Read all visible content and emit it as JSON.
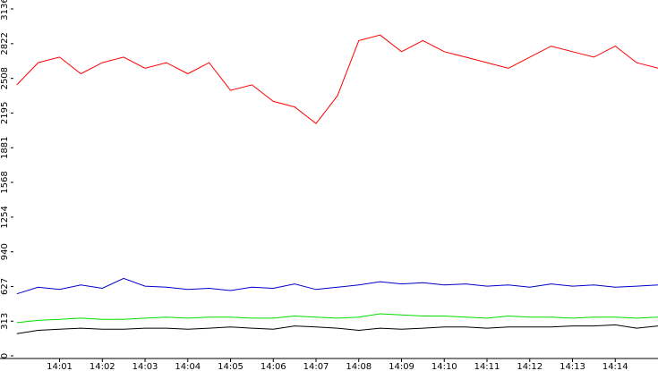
{
  "chart_data": {
    "type": "line",
    "x": [
      840.0,
      840.5,
      841.0,
      841.5,
      842.0,
      842.5,
      843.0,
      843.5,
      844.0,
      844.5,
      845.0,
      845.5,
      846.0,
      846.5,
      847.0,
      847.5,
      848.0,
      848.5,
      849.0,
      849.5,
      850.0,
      850.5,
      851.0,
      851.5,
      852.0,
      852.5,
      853.0,
      853.5,
      854.0,
      854.5,
      855.0
    ],
    "xlim": [
      839.9,
      855.0
    ],
    "xticks": [
      {
        "value": 841,
        "label": "14:01"
      },
      {
        "value": 842,
        "label": "14:02"
      },
      {
        "value": 843,
        "label": "14:03"
      },
      {
        "value": 844,
        "label": "14:04"
      },
      {
        "value": 845,
        "label": "14:05"
      },
      {
        "value": 846,
        "label": "14:06"
      },
      {
        "value": 847,
        "label": "14:07"
      },
      {
        "value": 848,
        "label": "14:08"
      },
      {
        "value": 849,
        "label": "14:09"
      },
      {
        "value": 850,
        "label": "14:10"
      },
      {
        "value": 851,
        "label": "14:11"
      },
      {
        "value": 852,
        "label": "14:12"
      },
      {
        "value": 853,
        "label": "14:13"
      },
      {
        "value": 854,
        "label": "14:14"
      }
    ],
    "ylim": [
      0,
      3136
    ],
    "yticks": [
      0,
      313,
      627,
      940,
      1254,
      1568,
      1881,
      2195,
      2508,
      2822,
      3136
    ],
    "series": [
      {
        "color": "#ff0000",
        "values": [
          2450,
          2650,
          2700,
          2550,
          2650,
          2700,
          2600,
          2650,
          2550,
          2650,
          2400,
          2450,
          2300,
          2250,
          2100,
          2350,
          2850,
          2900,
          2750,
          2850,
          2750,
          2700,
          2650,
          2600,
          2700,
          2800,
          2750,
          2700,
          2800,
          2650,
          2600
        ]
      },
      {
        "color": "#0000cc",
        "values": [
          560,
          620,
          600,
          640,
          610,
          700,
          630,
          620,
          600,
          610,
          590,
          620,
          610,
          650,
          600,
          620,
          640,
          670,
          650,
          660,
          640,
          650,
          630,
          640,
          620,
          650,
          630,
          640,
          620,
          630,
          640
        ]
      },
      {
        "color": "#00e000",
        "values": [
          300,
          320,
          330,
          340,
          330,
          330,
          340,
          350,
          340,
          350,
          350,
          340,
          340,
          360,
          350,
          340,
          350,
          380,
          370,
          360,
          360,
          350,
          340,
          360,
          350,
          350,
          340,
          350,
          350,
          340,
          350
        ]
      },
      {
        "color": "#000000",
        "values": [
          200,
          230,
          240,
          250,
          240,
          240,
          250,
          250,
          240,
          250,
          260,
          250,
          240,
          270,
          260,
          250,
          230,
          250,
          240,
          250,
          260,
          260,
          250,
          260,
          260,
          260,
          270,
          270,
          280,
          250,
          270
        ]
      }
    ]
  }
}
